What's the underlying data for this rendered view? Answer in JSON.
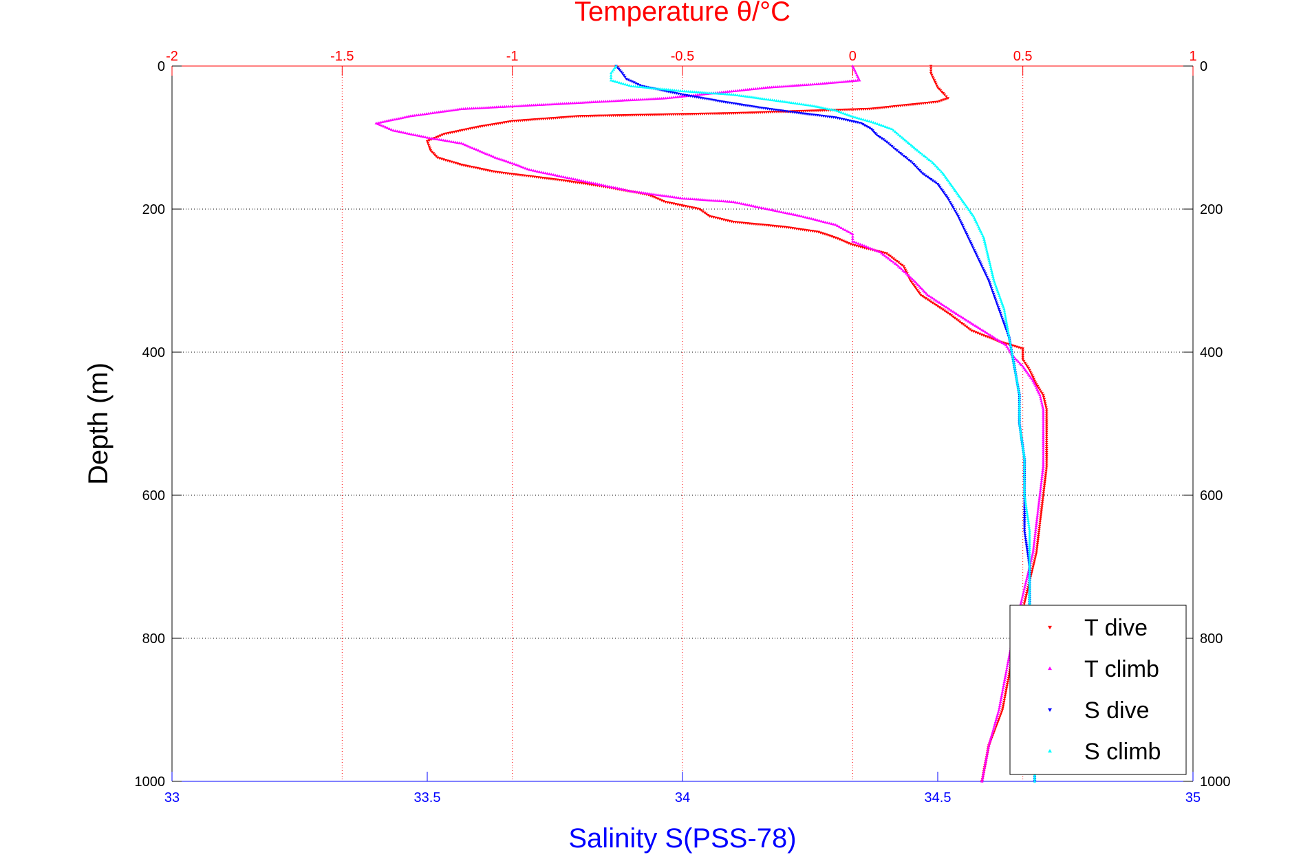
{
  "chart_data": {
    "type": "scatter",
    "title": "Temperature θ/°C",
    "xlabel": "Salinity S(PSS-78)",
    "ylabel": "Depth (m)",
    "temperature_axis": {
      "range": [
        -2,
        1
      ],
      "ticks": [
        -2,
        -1.5,
        -1,
        -0.5,
        0,
        0.5,
        1
      ],
      "tick_labels": [
        "-2",
        "-1.5",
        "-1",
        "-0.5",
        "0",
        "0.5",
        "1"
      ],
      "color": "#ff0000",
      "position": "top",
      "grid": true
    },
    "salinity_axis": {
      "range": [
        33,
        35
      ],
      "ticks": [
        33,
        33.5,
        34,
        34.5,
        35
      ],
      "tick_labels": [
        "33",
        "33.5",
        "34",
        "34.5",
        "35"
      ],
      "color": "#0000ff",
      "position": "bottom"
    },
    "depth_axis": {
      "range": [
        0,
        1000
      ],
      "reversed": true,
      "ticks": [
        0,
        200,
        400,
        600,
        800,
        1000
      ],
      "tick_labels": [
        "0",
        "200",
        "400",
        "600",
        "800",
        "1000"
      ],
      "grid": true,
      "color": "#000000"
    },
    "legend": {
      "position": "bottom-right",
      "entries": [
        {
          "label": "T dive",
          "color": "#ff0000",
          "marker": "triangle-down"
        },
        {
          "label": "T climb",
          "color": "#ff00ff",
          "marker": "triangle-up"
        },
        {
          "label": "S dive",
          "color": "#0000ff",
          "marker": "triangle-down"
        },
        {
          "label": "S climb",
          "color": "#00ffff",
          "marker": "triangle-up"
        }
      ]
    },
    "series": [
      {
        "name": "T dive",
        "axis": "temperature",
        "color": "#ff0000",
        "marker": "triangle-down",
        "points": [
          [
            0.23,
            0
          ],
          [
            0.23,
            10
          ],
          [
            0.24,
            20
          ],
          [
            0.25,
            30
          ],
          [
            0.27,
            40
          ],
          [
            0.28,
            45
          ],
          [
            0.25,
            50
          ],
          [
            0.05,
            60
          ],
          [
            -0.35,
            66
          ],
          [
            -0.8,
            70
          ],
          [
            -1.0,
            77
          ],
          [
            -1.1,
            85
          ],
          [
            -1.2,
            95
          ],
          [
            -1.25,
            105
          ],
          [
            -1.24,
            118
          ],
          [
            -1.22,
            128
          ],
          [
            -1.15,
            138
          ],
          [
            -1.05,
            148
          ],
          [
            -0.85,
            160
          ],
          [
            -0.75,
            167
          ],
          [
            -0.6,
            180
          ],
          [
            -0.55,
            190
          ],
          [
            -0.45,
            200
          ],
          [
            -0.42,
            210
          ],
          [
            -0.35,
            218
          ],
          [
            -0.2,
            225
          ],
          [
            -0.1,
            232
          ],
          [
            -0.05,
            240
          ],
          [
            0.0,
            250
          ],
          [
            0.1,
            262
          ],
          [
            0.15,
            280
          ],
          [
            0.17,
            300
          ],
          [
            0.2,
            320
          ],
          [
            0.28,
            345
          ],
          [
            0.35,
            370
          ],
          [
            0.43,
            385
          ],
          [
            0.5,
            395
          ],
          [
            0.5,
            410
          ],
          [
            0.52,
            425
          ],
          [
            0.54,
            445
          ],
          [
            0.56,
            460
          ],
          [
            0.57,
            480
          ],
          [
            0.57,
            520
          ],
          [
            0.57,
            560
          ],
          [
            0.56,
            600
          ],
          [
            0.55,
            640
          ],
          [
            0.54,
            680
          ],
          [
            0.52,
            720
          ],
          [
            0.5,
            760
          ],
          [
            0.48,
            800
          ],
          [
            0.46,
            850
          ],
          [
            0.44,
            900
          ],
          [
            0.4,
            950
          ],
          [
            0.38,
            1000
          ]
        ]
      },
      {
        "name": "T climb",
        "axis": "temperature",
        "color": "#ff00ff",
        "marker": "triangle-up",
        "points": [
          [
            0.0,
            0
          ],
          [
            0.01,
            10
          ],
          [
            0.02,
            20
          ],
          [
            -0.1,
            25
          ],
          [
            -0.25,
            30
          ],
          [
            -0.35,
            35
          ],
          [
            -0.45,
            40
          ],
          [
            -0.55,
            45
          ],
          [
            -0.75,
            50
          ],
          [
            -0.95,
            55
          ],
          [
            -1.15,
            60
          ],
          [
            -1.3,
            70
          ],
          [
            -1.4,
            80
          ],
          [
            -1.35,
            90
          ],
          [
            -1.25,
            100
          ],
          [
            -1.15,
            108
          ],
          [
            -1.1,
            118
          ],
          [
            -1.05,
            128
          ],
          [
            -1.0,
            136
          ],
          [
            -0.95,
            145
          ],
          [
            -0.85,
            155
          ],
          [
            -0.75,
            165
          ],
          [
            -0.65,
            175
          ],
          [
            -0.5,
            185
          ],
          [
            -0.35,
            190
          ],
          [
            -0.25,
            200
          ],
          [
            -0.15,
            210
          ],
          [
            -0.05,
            222
          ],
          [
            0.0,
            235
          ],
          [
            0.0,
            245
          ],
          [
            0.08,
            260
          ],
          [
            0.13,
            278
          ],
          [
            0.18,
            300
          ],
          [
            0.22,
            320
          ],
          [
            0.3,
            345
          ],
          [
            0.35,
            360
          ],
          [
            0.4,
            375
          ],
          [
            0.45,
            390
          ],
          [
            0.47,
            405
          ],
          [
            0.5,
            420
          ],
          [
            0.53,
            440
          ],
          [
            0.55,
            460
          ],
          [
            0.56,
            480
          ],
          [
            0.56,
            520
          ],
          [
            0.56,
            560
          ],
          [
            0.55,
            600
          ],
          [
            0.54,
            640
          ],
          [
            0.53,
            680
          ],
          [
            0.51,
            720
          ],
          [
            0.49,
            760
          ],
          [
            0.47,
            800
          ],
          [
            0.45,
            850
          ],
          [
            0.43,
            900
          ],
          [
            0.4,
            950
          ],
          [
            0.38,
            1000
          ]
        ]
      },
      {
        "name": "S dive",
        "axis": "salinity",
        "color": "#0000ff",
        "marker": "triangle-down",
        "points": [
          [
            33.87,
            0
          ],
          [
            33.88,
            8
          ],
          [
            33.89,
            18
          ],
          [
            33.92,
            28
          ],
          [
            34.0,
            40
          ],
          [
            34.08,
            50
          ],
          [
            34.15,
            58
          ],
          [
            34.22,
            65
          ],
          [
            34.3,
            72
          ],
          [
            34.35,
            80
          ],
          [
            34.37,
            88
          ],
          [
            34.38,
            96
          ],
          [
            34.4,
            106
          ],
          [
            34.42,
            118
          ],
          [
            34.45,
            135
          ],
          [
            34.47,
            150
          ],
          [
            34.5,
            165
          ],
          [
            34.52,
            185
          ],
          [
            34.54,
            210
          ],
          [
            34.56,
            240
          ],
          [
            34.58,
            270
          ],
          [
            34.6,
            300
          ],
          [
            34.62,
            340
          ],
          [
            34.64,
            380
          ],
          [
            34.65,
            420
          ],
          [
            34.66,
            460
          ],
          [
            34.66,
            500
          ],
          [
            34.67,
            550
          ],
          [
            34.67,
            600
          ],
          [
            34.67,
            650
          ],
          [
            34.68,
            700
          ],
          [
            34.68,
            750
          ],
          [
            34.68,
            800
          ],
          [
            34.68,
            850
          ],
          [
            34.68,
            900
          ],
          [
            34.69,
            950
          ],
          [
            34.69,
            1000
          ]
        ]
      },
      {
        "name": "S climb",
        "axis": "salinity",
        "color": "#00ffff",
        "marker": "triangle-up",
        "points": [
          [
            33.87,
            0
          ],
          [
            33.86,
            10
          ],
          [
            33.86,
            20
          ],
          [
            33.9,
            28
          ],
          [
            34.0,
            35
          ],
          [
            34.1,
            40
          ],
          [
            34.18,
            48
          ],
          [
            34.25,
            55
          ],
          [
            34.3,
            62
          ],
          [
            34.33,
            70
          ],
          [
            34.37,
            78
          ],
          [
            34.41,
            88
          ],
          [
            34.43,
            100
          ],
          [
            34.46,
            118
          ],
          [
            34.49,
            135
          ],
          [
            34.51,
            150
          ],
          [
            34.53,
            170
          ],
          [
            34.55,
            190
          ],
          [
            34.57,
            210
          ],
          [
            34.59,
            240
          ],
          [
            34.6,
            270
          ],
          [
            34.61,
            300
          ],
          [
            34.63,
            340
          ],
          [
            34.64,
            380
          ],
          [
            34.65,
            420
          ],
          [
            34.66,
            460
          ],
          [
            34.66,
            500
          ],
          [
            34.67,
            550
          ],
          [
            34.67,
            600
          ],
          [
            34.68,
            650
          ],
          [
            34.68,
            700
          ],
          [
            34.68,
            750
          ],
          [
            34.69,
            800
          ],
          [
            34.69,
            850
          ],
          [
            34.69,
            900
          ],
          [
            34.69,
            950
          ],
          [
            34.69,
            1000
          ]
        ]
      }
    ]
  }
}
